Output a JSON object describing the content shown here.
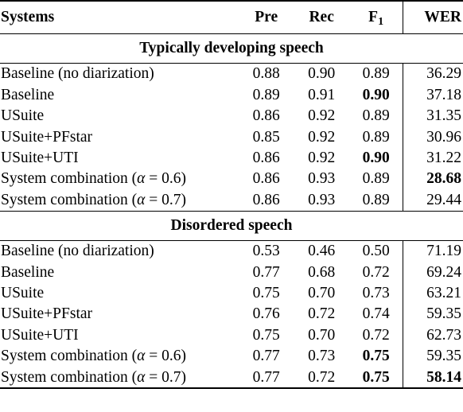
{
  "header": {
    "systems": "Systems",
    "pre": "Pre",
    "rec": "Rec",
    "f1_main": "F",
    "f1_sub": "1",
    "wer": "WER"
  },
  "sections": [
    {
      "title": "Typically developing speech",
      "rows": [
        {
          "system": "Baseline (no diarization)",
          "alpha": "",
          "pre": "0.88",
          "rec": "0.90",
          "f1": "0.89",
          "wer": "36.29",
          "f1_bold": false,
          "wer_bold": false
        },
        {
          "system": "Baseline",
          "alpha": "",
          "pre": "0.89",
          "rec": "0.91",
          "f1": "0.90",
          "wer": "37.18",
          "f1_bold": true,
          "wer_bold": false
        },
        {
          "system": "USuite",
          "alpha": "",
          "pre": "0.86",
          "rec": "0.92",
          "f1": "0.89",
          "wer": "31.35",
          "f1_bold": false,
          "wer_bold": false
        },
        {
          "system": "USuite+PFstar",
          "alpha": "",
          "pre": "0.85",
          "rec": "0.92",
          "f1": "0.89",
          "wer": "30.96",
          "f1_bold": false,
          "wer_bold": false
        },
        {
          "system": "USuite+UTI",
          "alpha": "",
          "pre": "0.86",
          "rec": "0.92",
          "f1": "0.90",
          "wer": "31.22",
          "f1_bold": true,
          "wer_bold": false
        },
        {
          "system": "System combination",
          "alpha": "0.6",
          "pre": "0.86",
          "rec": "0.93",
          "f1": "0.89",
          "wer": "28.68",
          "f1_bold": false,
          "wer_bold": true
        },
        {
          "system": "System combination",
          "alpha": "0.7",
          "pre": "0.86",
          "rec": "0.93",
          "f1": "0.89",
          "wer": "29.44",
          "f1_bold": false,
          "wer_bold": false
        }
      ]
    },
    {
      "title": "Disordered speech",
      "rows": [
        {
          "system": "Baseline (no diarization)",
          "alpha": "",
          "pre": "0.53",
          "rec": "0.46",
          "f1": "0.50",
          "wer": "71.19",
          "f1_bold": false,
          "wer_bold": false
        },
        {
          "system": "Baseline",
          "alpha": "",
          "pre": "0.77",
          "rec": "0.68",
          "f1": "0.72",
          "wer": "69.24",
          "f1_bold": false,
          "wer_bold": false
        },
        {
          "system": "USuite",
          "alpha": "",
          "pre": "0.75",
          "rec": "0.70",
          "f1": "0.73",
          "wer": "63.21",
          "f1_bold": false,
          "wer_bold": false
        },
        {
          "system": "USuite+PFstar",
          "alpha": "",
          "pre": "0.76",
          "rec": "0.72",
          "f1": "0.74",
          "wer": "59.35",
          "f1_bold": false,
          "wer_bold": false
        },
        {
          "system": "USuite+UTI",
          "alpha": "",
          "pre": "0.75",
          "rec": "0.70",
          "f1": "0.72",
          "wer": "62.73",
          "f1_bold": false,
          "wer_bold": false
        },
        {
          "system": "System combination",
          "alpha": "0.6",
          "pre": "0.77",
          "rec": "0.73",
          "f1": "0.75",
          "wer": "59.35",
          "f1_bold": true,
          "wer_bold": false
        },
        {
          "system": "System combination",
          "alpha": "0.7",
          "pre": "0.77",
          "rec": "0.72",
          "f1": "0.75",
          "wer": "58.14",
          "f1_bold": true,
          "wer_bold": true
        }
      ]
    }
  ]
}
